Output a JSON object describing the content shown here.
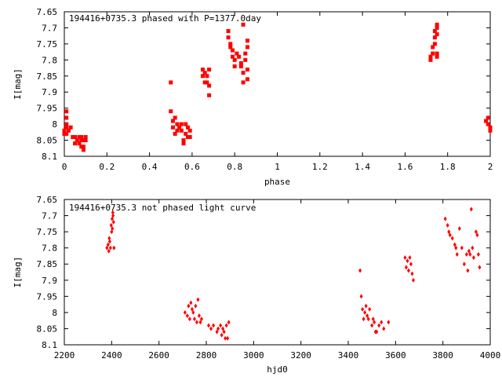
{
  "chart_data": [
    {
      "type": "scatter",
      "title": "194416+0735.3 phased with P=1377.0day",
      "xlabel": "phase",
      "ylabel": "I[mag]",
      "xlim": [
        0,
        2
      ],
      "ylim": [
        8.1,
        7.65
      ],
      "y_inverted": true,
      "grid": false,
      "marker_color": "#ff0000",
      "xticks": [
        "0",
        "0.2",
        "0.4",
        "0.6",
        "0.8",
        "1",
        "1.2",
        "1.4",
        "1.6",
        "1.8",
        "2"
      ],
      "yticks": [
        "7.65",
        "7.7",
        "7.75",
        "7.8",
        "7.85",
        "7.9",
        "7.95",
        "8",
        "8.05",
        "8.1"
      ],
      "points": [
        [
          0.0,
          8.02
        ],
        [
          0.0,
          8.03
        ],
        [
          0.01,
          7.96
        ],
        [
          0.01,
          7.98
        ],
        [
          0.01,
          8.01
        ],
        [
          0.01,
          8.03
        ],
        [
          0.01,
          8.0
        ],
        [
          0.02,
          8.02
        ],
        [
          0.03,
          8.01
        ],
        [
          0.04,
          8.04
        ],
        [
          0.04,
          8.04
        ],
        [
          0.05,
          8.06
        ],
        [
          0.05,
          8.04
        ],
        [
          0.06,
          8.05
        ],
        [
          0.07,
          8.04
        ],
        [
          0.07,
          8.06
        ],
        [
          0.08,
          8.05
        ],
        [
          0.08,
          8.04
        ],
        [
          0.08,
          8.07
        ],
        [
          0.09,
          8.07
        ],
        [
          0.09,
          8.08
        ],
        [
          0.09,
          8.05
        ],
        [
          0.1,
          8.04
        ],
        [
          0.1,
          8.05
        ],
        [
          0.5,
          7.87
        ],
        [
          0.5,
          7.96
        ],
        [
          0.51,
          7.99
        ],
        [
          0.51,
          8.01
        ],
        [
          0.52,
          8.03
        ],
        [
          0.52,
          7.98
        ],
        [
          0.53,
          8.0
        ],
        [
          0.53,
          8.02
        ],
        [
          0.54,
          8.01
        ],
        [
          0.55,
          8.0
        ],
        [
          0.55,
          8.02
        ],
        [
          0.56,
          8.06
        ],
        [
          0.56,
          8.05
        ],
        [
          0.57,
          8.03
        ],
        [
          0.57,
          8.0
        ],
        [
          0.58,
          8.04
        ],
        [
          0.58,
          8.01
        ],
        [
          0.59,
          8.02
        ],
        [
          0.59,
          8.04
        ],
        [
          0.65,
          7.83
        ],
        [
          0.65,
          7.85
        ],
        [
          0.66,
          7.87
        ],
        [
          0.66,
          7.84
        ],
        [
          0.67,
          7.85
        ],
        [
          0.67,
          7.87
        ],
        [
          0.68,
          7.88
        ],
        [
          0.68,
          7.91
        ],
        [
          0.68,
          7.83
        ],
        [
          0.77,
          7.71
        ],
        [
          0.77,
          7.73
        ],
        [
          0.78,
          7.75
        ],
        [
          0.78,
          7.76
        ],
        [
          0.79,
          7.77
        ],
        [
          0.79,
          7.79
        ],
        [
          0.8,
          7.8
        ],
        [
          0.8,
          7.82
        ],
        [
          0.81,
          7.78
        ],
        [
          0.82,
          7.79
        ],
        [
          0.83,
          7.81
        ],
        [
          0.83,
          7.82
        ],
        [
          0.84,
          7.84
        ],
        [
          0.84,
          7.87
        ],
        [
          0.84,
          7.69
        ],
        [
          0.85,
          7.8
        ],
        [
          0.85,
          7.78
        ],
        [
          0.86,
          7.76
        ],
        [
          0.86,
          7.74
        ],
        [
          0.86,
          7.83
        ],
        [
          0.86,
          7.86
        ],
        [
          1.72,
          7.8
        ],
        [
          1.72,
          7.79
        ],
        [
          1.73,
          7.78
        ],
        [
          1.73,
          7.76
        ],
        [
          1.74,
          7.75
        ],
        [
          1.74,
          7.73
        ],
        [
          1.74,
          7.71
        ],
        [
          1.75,
          7.7
        ],
        [
          1.75,
          7.69
        ],
        [
          1.75,
          7.72
        ],
        [
          1.75,
          7.79
        ],
        [
          1.75,
          7.78
        ],
        [
          1.98,
          7.99
        ],
        [
          1.99,
          8.0
        ],
        [
          1.99,
          7.98
        ],
        [
          2.0,
          8.01
        ],
        [
          2.0,
          8.02
        ]
      ]
    },
    {
      "type": "scatter",
      "title": "194416+0735.3 not phased light curve",
      "xlabel": "hjd0",
      "ylabel": "I[mag]",
      "xlim": [
        2200,
        4000
      ],
      "ylim": [
        8.1,
        7.65
      ],
      "y_inverted": true,
      "grid": false,
      "marker_color": "#ff0000",
      "xticks": [
        "2200",
        "2400",
        "2600",
        "2800",
        "3000",
        "3200",
        "3400",
        "3600",
        "3800",
        "4000"
      ],
      "yticks": [
        "7.65",
        "7.7",
        "7.75",
        "7.8",
        "7.85",
        "7.9",
        "7.95",
        "8",
        "8.05",
        "8.1"
      ],
      "points": [
        [
          2380,
          7.8
        ],
        [
          2385,
          7.79
        ],
        [
          2388,
          7.81
        ],
        [
          2390,
          7.77
        ],
        [
          2392,
          7.78
        ],
        [
          2395,
          7.8
        ],
        [
          2398,
          7.73
        ],
        [
          2400,
          7.75
        ],
        [
          2402,
          7.71
        ],
        [
          2403,
          7.74
        ],
        [
          2405,
          7.69
        ],
        [
          2406,
          7.7
        ],
        [
          2408,
          7.72
        ],
        [
          2410,
          7.8
        ],
        [
          2710,
          8.0
        ],
        [
          2720,
          8.01
        ],
        [
          2725,
          7.98
        ],
        [
          2730,
          8.02
        ],
        [
          2735,
          7.97
        ],
        [
          2740,
          7.99
        ],
        [
          2745,
          8.0
        ],
        [
          2750,
          8.02
        ],
        [
          2755,
          7.98
        ],
        [
          2760,
          8.03
        ],
        [
          2765,
          7.96
        ],
        [
          2770,
          8.01
        ],
        [
          2775,
          8.03
        ],
        [
          2780,
          8.02
        ],
        [
          2810,
          8.04
        ],
        [
          2820,
          8.05
        ],
        [
          2830,
          8.04
        ],
        [
          2845,
          8.06
        ],
        [
          2850,
          8.05
        ],
        [
          2860,
          8.04
        ],
        [
          2865,
          8.07
        ],
        [
          2870,
          8.05
        ],
        [
          2875,
          8.06
        ],
        [
          2880,
          8.08
        ],
        [
          2885,
          8.04
        ],
        [
          2890,
          8.08
        ],
        [
          2895,
          8.03
        ],
        [
          3450,
          7.87
        ],
        [
          3455,
          7.95
        ],
        [
          3460,
          7.99
        ],
        [
          3465,
          8.02
        ],
        [
          3470,
          8.0
        ],
        [
          3475,
          7.98
        ],
        [
          3480,
          8.01
        ],
        [
          3485,
          8.02
        ],
        [
          3490,
          7.99
        ],
        [
          3500,
          8.04
        ],
        [
          3505,
          8.02
        ],
        [
          3510,
          8.03
        ],
        [
          3515,
          8.06
        ],
        [
          3520,
          8.06
        ],
        [
          3530,
          8.04
        ],
        [
          3540,
          8.03
        ],
        [
          3550,
          8.05
        ],
        [
          3570,
          8.03
        ],
        [
          3640,
          7.83
        ],
        [
          3645,
          7.86
        ],
        [
          3650,
          7.84
        ],
        [
          3655,
          7.87
        ],
        [
          3660,
          7.83
        ],
        [
          3665,
          7.85
        ],
        [
          3670,
          7.88
        ],
        [
          3675,
          7.9
        ],
        [
          3810,
          7.71
        ],
        [
          3820,
          7.73
        ],
        [
          3825,
          7.75
        ],
        [
          3830,
          7.76
        ],
        [
          3840,
          7.77
        ],
        [
          3850,
          7.79
        ],
        [
          3855,
          7.8
        ],
        [
          3860,
          7.82
        ],
        [
          3870,
          7.74
        ],
        [
          3880,
          7.8
        ],
        [
          3890,
          7.85
        ],
        [
          3900,
          7.82
        ],
        [
          3905,
          7.87
        ],
        [
          3910,
          7.81
        ],
        [
          3915,
          7.82
        ],
        [
          3920,
          7.68
        ],
        [
          3925,
          7.8
        ],
        [
          3930,
          7.83
        ],
        [
          3940,
          7.75
        ],
        [
          3945,
          7.76
        ],
        [
          3950,
          7.82
        ],
        [
          3955,
          7.86
        ]
      ]
    }
  ]
}
